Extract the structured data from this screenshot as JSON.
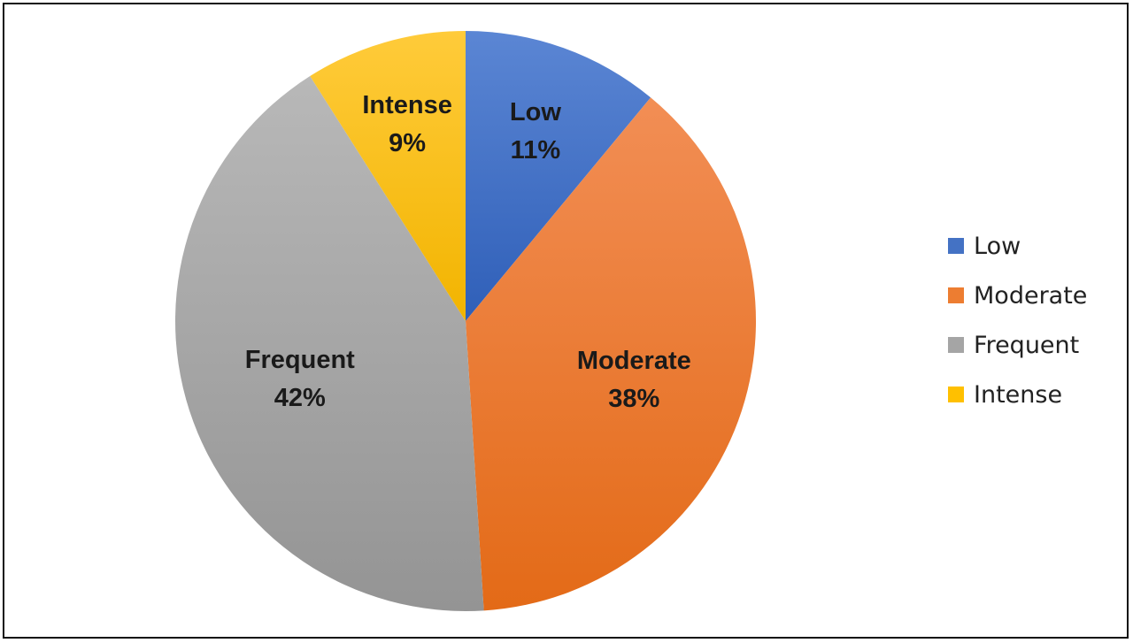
{
  "chart_data": {
    "type": "pie",
    "title": "",
    "legend_position": "right",
    "slices": [
      {
        "label": "Low",
        "value": 11,
        "value_label": "11%",
        "color": "#4472C4"
      },
      {
        "label": "Moderate",
        "value": 38,
        "value_label": "38%",
        "color": "#ED7D31"
      },
      {
        "label": "Frequent",
        "value": 42,
        "value_label": "42%",
        "color": "#A5A5A5"
      },
      {
        "label": "Intense",
        "value": 9,
        "value_label": "9%",
        "color": "#FFC000"
      }
    ],
    "legend": [
      "Low",
      "Moderate",
      "Frequent",
      "Intense"
    ]
  }
}
